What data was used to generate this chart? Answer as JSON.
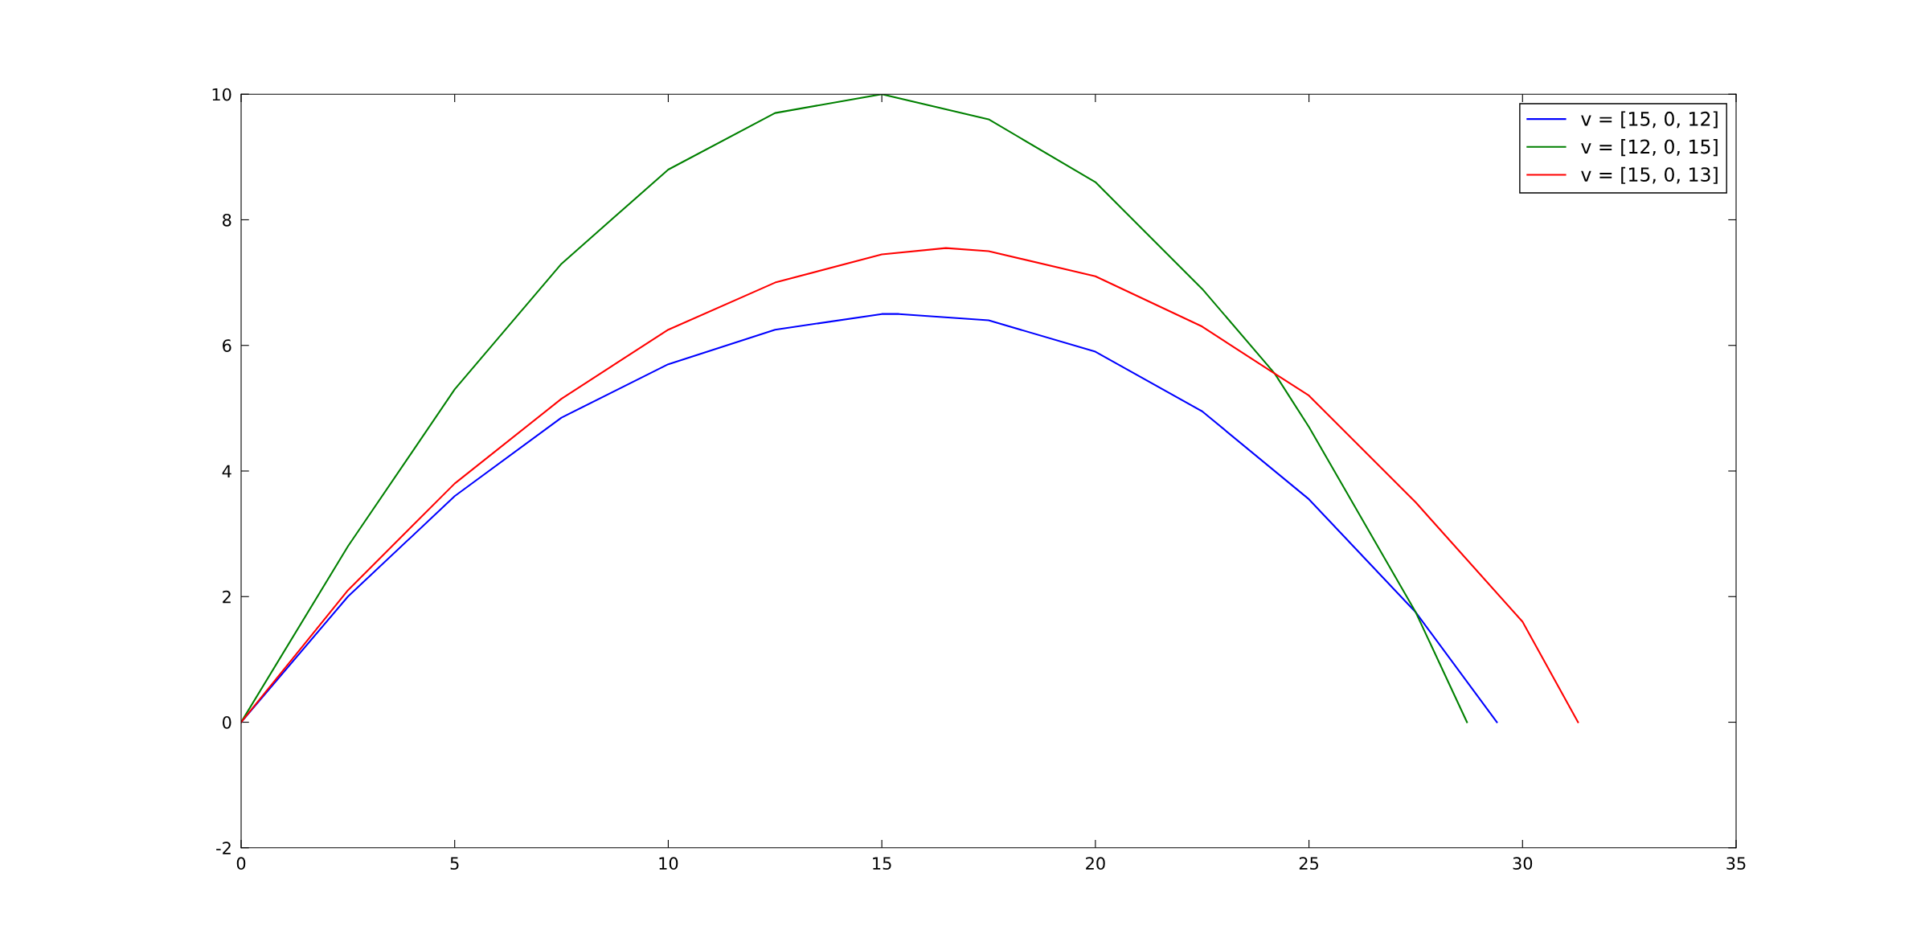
{
  "chart_data": {
    "type": "line",
    "xlim": [
      0,
      35
    ],
    "ylim": [
      -2,
      10
    ],
    "xticks": [
      0,
      5,
      10,
      15,
      20,
      25,
      30,
      35
    ],
    "yticks": [
      -2,
      0,
      2,
      4,
      6,
      8,
      10
    ],
    "grid": false,
    "legend": "top right",
    "marker": "none",
    "line_style": "solid",
    "series": [
      {
        "name": "v = [15, 0, 12]",
        "color": "#0000ff",
        "x": [
          0,
          2.5,
          5,
          7.5,
          10,
          12.5,
          15,
          15.4,
          17.5,
          20,
          22.5,
          25,
          27.5,
          29.4
        ],
        "values": [
          0,
          2.0,
          3.6,
          4.85,
          5.7,
          6.25,
          6.5,
          6.5,
          6.4,
          5.9,
          4.95,
          3.55,
          1.75,
          0
        ]
      },
      {
        "name": "v = [12, 0, 15]",
        "color": "#008000",
        "x": [
          0,
          2.5,
          5,
          7.5,
          10,
          12.5,
          15,
          17.5,
          20,
          22.5,
          24.2,
          25,
          27.5,
          28.7
        ],
        "values": [
          0,
          2.8,
          5.3,
          7.3,
          8.8,
          9.7,
          10.0,
          9.6,
          8.6,
          6.9,
          5.55,
          4.7,
          1.75,
          0
        ]
      },
      {
        "name": "v = [15, 0, 13]",
        "color": "#ff0000",
        "x": [
          0,
          2.5,
          5,
          7.5,
          10,
          12.5,
          15,
          16.5,
          17.5,
          20,
          22.5,
          24.2,
          25,
          27.5,
          30,
          31.3
        ],
        "values": [
          0,
          2.1,
          3.8,
          5.15,
          6.25,
          7.0,
          7.45,
          7.55,
          7.5,
          7.1,
          6.3,
          5.55,
          5.2,
          3.5,
          1.6,
          0
        ]
      }
    ]
  }
}
